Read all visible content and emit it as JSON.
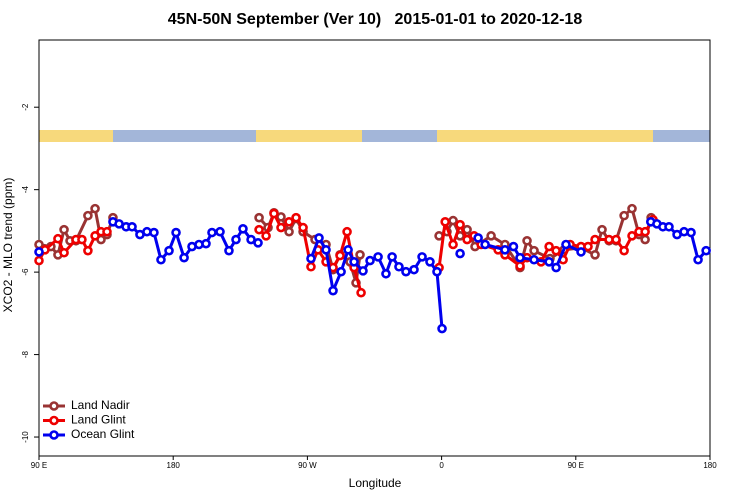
{
  "chart_data": {
    "type": "line",
    "title": "45N-50N September (Ver 10)   2015-01-01 to 2020-12-18",
    "x_label": "Longitude",
    "y_label": "XCO2 - MLO trend (ppm)",
    "xlim": [
      90,
      540
    ],
    "ylim": [
      -10.46,
      -0.37
    ],
    "xticks": [
      {
        "value": 90,
        "label": "90 E"
      },
      180,
      {
        "value": 270,
        "label": "90 W"
      },
      {
        "value": 360,
        "label": "0"
      },
      {
        "value": 450,
        "label": "90 E"
      },
      {
        "value": 540,
        "label": "180"
      }
    ],
    "yticks": [
      -10,
      -8,
      -6,
      -4,
      -2
    ],
    "legend": "bottom-left",
    "series": [
      {
        "name": "Land Nadir",
        "color": "#993333",
        "x": [
          90,
          98,
          102.7,
          106.8,
          110.8,
          114.8,
          122.8,
          127.6,
          131.6,
          135.6,
          139.6,
          null,
          237.6,
          243.6,
          247.6,
          252.3,
          257.7,
          262.4,
          267.1,
          275.1,
          282.5,
          287.2,
          291.9,
          298.6,
          302.6,
          305.3,
          null,
          358.3,
          363.6,
          367.7,
          372.4,
          377.1,
          382.4,
          393.2,
          402.5,
          412.6,
          417.3,
          422,
          432.7,
          442.1,
          453.5,
          462.9,
          467.6,
          472.3,
          477,
          482.4,
          487.7,
          492.4,
          496.5,
          500.5
        ],
        "values": [
          -5.33,
          -5.38,
          -5.58,
          -4.97,
          -5.24,
          -5.24,
          -4.63,
          -4.46,
          -5.21,
          -5.09,
          -4.68,
          null,
          -4.68,
          -4.92,
          -4.56,
          -4.66,
          -5.02,
          -4.7,
          -5.02,
          -5.21,
          -5.33,
          -5.94,
          -5.58,
          -5.75,
          -6.26,
          -5.58,
          null,
          -5.12,
          -5.02,
          -4.75,
          -5.12,
          -4.97,
          -5.38,
          -5.12,
          -5.33,
          -5.89,
          -5.24,
          -5.48,
          -5.67,
          -5.46,
          -5.41,
          -5.58,
          -4.97,
          -5.24,
          -5.24,
          -4.63,
          -4.46,
          -5.09,
          -5.21,
          -4.68
        ]
      },
      {
        "name": "Land Glint",
        "color": "#ee0000",
        "x": [
          90,
          94,
          102.7,
          106.8,
          114.8,
          118.8,
          122.8,
          127.6,
          131.6,
          135.6,
          null,
          237.6,
          242.3,
          247.6,
          252.3,
          257.7,
          262.4,
          267.1,
          272.4,
          277.1,
          282.5,
          287.2,
          291.9,
          296.6,
          301.3,
          306,
          null,
          358.3,
          362.4,
          367.7,
          372.4,
          377.1,
          381.8,
          386.5,
          397.9,
          402.5,
          412.6,
          417.3,
          426.7,
          432.1,
          436.8,
          441.5,
          446.2,
          453.5,
          458.2,
          462.9,
          472.3,
          477,
          482.4,
          487.7,
          492.4,
          496.5,
          501.8
        ],
        "values": [
          -5.72,
          -5.46,
          -5.19,
          -5.53,
          -5.21,
          -5.21,
          -5.48,
          -5.12,
          -5.02,
          -5.02,
          null,
          -4.97,
          -5.12,
          -4.58,
          -4.92,
          -4.78,
          -4.68,
          -4.92,
          -5.87,
          -5.46,
          -5.75,
          -5.89,
          -5.6,
          -5.02,
          -5.89,
          -6.5,
          null,
          -5.89,
          -4.78,
          -5.33,
          -4.85,
          -5.21,
          -5.12,
          -5.33,
          -5.46,
          -5.58,
          -5.85,
          -5.65,
          -5.75,
          -5.38,
          -5.48,
          -5.7,
          -5.33,
          -5.38,
          -5.38,
          -5.21,
          -5.21,
          -5.21,
          -5.48,
          -5.12,
          -5.02,
          -5.02,
          -4.73
        ]
      },
      {
        "name": "Ocean Glint",
        "color": "#0000ee",
        "x": [
          90,
          null,
          139.6,
          143.7,
          148.4,
          152.4,
          157.7,
          162.4,
          167.1,
          171.8,
          177.2,
          181.9,
          187.3,
          192.6,
          197.3,
          202,
          206,
          211.4,
          217.4,
          222.1,
          226.8,
          232.2,
          236.9,
          null,
          272.4,
          277.8,
          282.5,
          287.2,
          292.6,
          297.3,
          301.3,
          307.3,
          312,
          317.4,
          322.7,
          326.8,
          331.4,
          336.1,
          341.5,
          346.9,
          352.2,
          356.9,
          360.3,
          null,
          372.4,
          null,
          384.5,
          389.2,
          402.5,
          408.2,
          412.6,
          422,
          432.1,
          436.8,
          443.4,
          453.5,
          null,
          500.3,
          504.4,
          508.4,
          512.5,
          517.9,
          522.6,
          527.3,
          532,
          537.4
        ],
        "values": [
          -5.51,
          null,
          -4.78,
          -4.83,
          -4.9,
          -4.9,
          -5.09,
          -5.02,
          -5.04,
          -5.7,
          -5.48,
          -5.04,
          -5.65,
          -5.38,
          -5.33,
          -5.31,
          -5.04,
          -5.02,
          -5.48,
          -5.21,
          -4.95,
          -5.21,
          -5.29,
          null,
          -5.67,
          -5.17,
          -5.46,
          -6.45,
          -5.99,
          -5.46,
          -5.75,
          -5.97,
          -5.72,
          -5.63,
          -6.04,
          -5.63,
          -5.87,
          -5.99,
          -5.94,
          -5.63,
          -5.75,
          -5.99,
          -7.37,
          null,
          -5.55,
          null,
          -5.17,
          -5.33,
          -5.46,
          -5.38,
          -5.65,
          -5.7,
          -5.75,
          -5.89,
          -5.33,
          -5.51,
          null,
          -4.78,
          -4.83,
          -4.9,
          -4.9,
          -5.09,
          -5.02,
          -5.04,
          -5.7,
          -5.48
        ]
      }
    ]
  }
}
